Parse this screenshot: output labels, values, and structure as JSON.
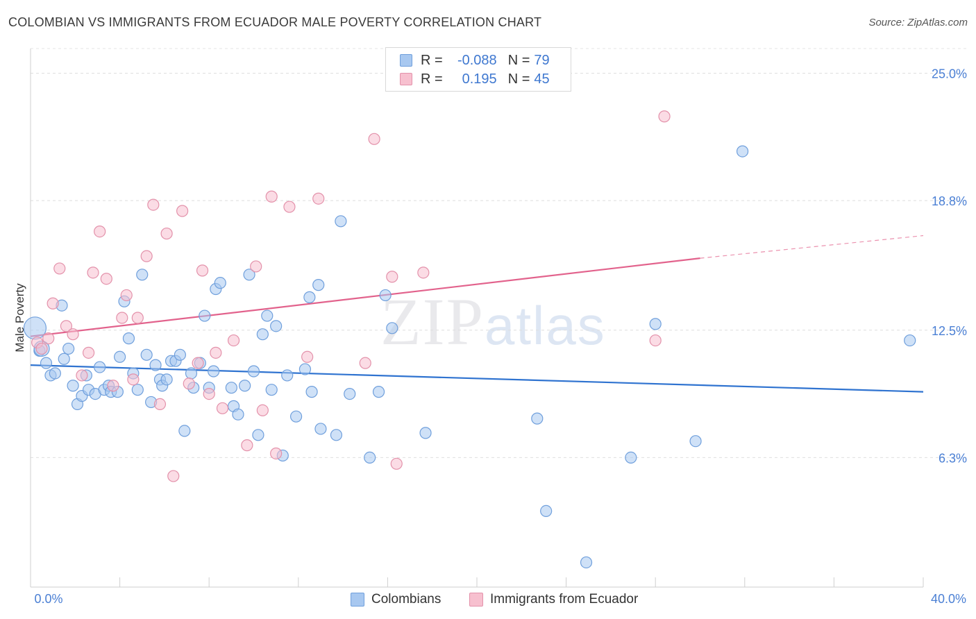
{
  "header": {
    "title": "COLOMBIAN VS IMMIGRANTS FROM ECUADOR MALE POVERTY CORRELATION CHART",
    "source": "Source: ZipAtlas.com"
  },
  "watermark": {
    "zip": "ZIP",
    "atlas": "atlas"
  },
  "legend": {
    "rows": [
      {
        "r_label": "R =",
        "r_value": "-0.088",
        "n_label": "N =",
        "n_value": "79",
        "color": "#a8c8f0",
        "border": "#6f9fdc"
      },
      {
        "r_label": "R =",
        "r_value": "0.195",
        "n_label": "N =",
        "n_value": "45",
        "color": "#f7c0cf",
        "border": "#e391aa"
      }
    ]
  },
  "bottom_legend": [
    {
      "label": "Colombians",
      "color": "#a8c8f0",
      "border": "#6f9fdc"
    },
    {
      "label": "Immigrants from Ecuador",
      "color": "#f7c0cf",
      "border": "#e391aa"
    }
  ],
  "chart_data": {
    "type": "scatter",
    "title": "COLOMBIAN VS IMMIGRANTS FROM ECUADOR MALE POVERTY CORRELATION CHART",
    "xlabel": "",
    "ylabel": "Male Poverty",
    "xlim": [
      0,
      40
    ],
    "ylim": [
      0,
      26.2
    ],
    "x_tick_labels": [
      "0.0%",
      "40.0%"
    ],
    "y_ticks": [
      6.3,
      12.5,
      18.8,
      25.0
    ],
    "y_tick_labels": [
      "6.3%",
      "12.5%",
      "18.8%",
      "25.0%"
    ],
    "grid": "horizontal dashed",
    "legend_position": "top-center",
    "series": [
      {
        "name": "Colombians",
        "color": "#6f9fdc",
        "fill": "#a8c8f0",
        "trend": {
          "x": [
            0,
            40
          ],
          "y": [
            10.8,
            9.5
          ],
          "color": "#2f73d0"
        },
        "points": [
          [
            0.2,
            12.6
          ],
          [
            0.4,
            11.5
          ],
          [
            0.7,
            10.9
          ],
          [
            0.9,
            10.3
          ],
          [
            1.1,
            10.4
          ],
          [
            1.4,
            13.7
          ],
          [
            1.5,
            11.1
          ],
          [
            1.7,
            11.6
          ],
          [
            1.9,
            9.8
          ],
          [
            2.1,
            8.9
          ],
          [
            2.3,
            9.3
          ],
          [
            2.5,
            10.3
          ],
          [
            2.6,
            9.6
          ],
          [
            2.9,
            9.4
          ],
          [
            3.1,
            10.7
          ],
          [
            3.3,
            9.6
          ],
          [
            3.5,
            9.8
          ],
          [
            3.6,
            9.5
          ],
          [
            3.9,
            9.5
          ],
          [
            4.0,
            11.2
          ],
          [
            4.2,
            13.9
          ],
          [
            4.4,
            12.1
          ],
          [
            4.6,
            10.4
          ],
          [
            4.8,
            9.6
          ],
          [
            5.0,
            15.2
          ],
          [
            5.2,
            11.3
          ],
          [
            5.4,
            9.0
          ],
          [
            5.6,
            10.8
          ],
          [
            5.8,
            10.1
          ],
          [
            5.9,
            9.8
          ],
          [
            6.1,
            10.1
          ],
          [
            6.3,
            11.0
          ],
          [
            6.5,
            11.0
          ],
          [
            6.7,
            11.3
          ],
          [
            6.9,
            7.6
          ],
          [
            7.2,
            10.4
          ],
          [
            7.3,
            9.7
          ],
          [
            7.6,
            10.9
          ],
          [
            7.8,
            13.2
          ],
          [
            8.0,
            9.7
          ],
          [
            8.2,
            10.5
          ],
          [
            8.3,
            14.5
          ],
          [
            8.5,
            14.8
          ],
          [
            9.0,
            9.7
          ],
          [
            9.1,
            8.8
          ],
          [
            9.3,
            8.4
          ],
          [
            9.6,
            9.8
          ],
          [
            9.8,
            15.2
          ],
          [
            10.0,
            10.5
          ],
          [
            10.2,
            7.4
          ],
          [
            10.4,
            12.3
          ],
          [
            10.6,
            13.2
          ],
          [
            10.8,
            9.6
          ],
          [
            11.0,
            12.7
          ],
          [
            11.3,
            6.4
          ],
          [
            11.5,
            10.3
          ],
          [
            11.9,
            8.3
          ],
          [
            12.3,
            10.6
          ],
          [
            12.5,
            14.1
          ],
          [
            12.6,
            9.5
          ],
          [
            12.9,
            14.7
          ],
          [
            13.0,
            7.7
          ],
          [
            13.7,
            7.4
          ],
          [
            13.9,
            17.8
          ],
          [
            14.3,
            9.4
          ],
          [
            15.2,
            6.3
          ],
          [
            15.6,
            9.5
          ],
          [
            15.9,
            14.2
          ],
          [
            16.2,
            12.6
          ],
          [
            17.7,
            7.5
          ],
          [
            22.7,
            8.2
          ],
          [
            23.1,
            3.7
          ],
          [
            24.9,
            1.2
          ],
          [
            26.9,
            6.3
          ],
          [
            28.0,
            12.8
          ],
          [
            29.8,
            7.1
          ],
          [
            31.9,
            21.2
          ],
          [
            39.4,
            12.0
          ],
          [
            0.5,
            11.6
          ]
        ]
      },
      {
        "name": "Immigrants from Ecuador",
        "color": "#e391aa",
        "fill": "#f7c0cf",
        "trend": {
          "x": [
            0,
            30
          ],
          "y": [
            12.2,
            16.0
          ],
          "x_dash_end": 40,
          "y_dash_end": 17.1,
          "color": "#e2628c"
        },
        "points": [
          [
            0.3,
            11.9
          ],
          [
            0.5,
            11.6
          ],
          [
            0.8,
            12.1
          ],
          [
            1.0,
            13.8
          ],
          [
            1.3,
            15.5
          ],
          [
            1.6,
            12.7
          ],
          [
            1.9,
            12.3
          ],
          [
            2.3,
            10.3
          ],
          [
            2.6,
            11.4
          ],
          [
            2.8,
            15.3
          ],
          [
            3.1,
            17.3
          ],
          [
            3.4,
            15.0
          ],
          [
            3.7,
            9.8
          ],
          [
            4.1,
            13.1
          ],
          [
            4.3,
            14.2
          ],
          [
            4.6,
            10.1
          ],
          [
            4.8,
            13.1
          ],
          [
            5.2,
            16.1
          ],
          [
            5.5,
            18.6
          ],
          [
            5.8,
            8.9
          ],
          [
            6.1,
            17.2
          ],
          [
            6.4,
            5.4
          ],
          [
            6.8,
            18.3
          ],
          [
            7.1,
            9.9
          ],
          [
            7.5,
            10.9
          ],
          [
            7.7,
            15.4
          ],
          [
            8.0,
            9.4
          ],
          [
            8.3,
            11.4
          ],
          [
            8.6,
            8.7
          ],
          [
            9.1,
            12.0
          ],
          [
            9.7,
            6.9
          ],
          [
            10.1,
            15.6
          ],
          [
            10.4,
            8.6
          ],
          [
            10.8,
            19.0
          ],
          [
            11.0,
            6.5
          ],
          [
            11.6,
            18.5
          ],
          [
            12.4,
            11.2
          ],
          [
            12.9,
            18.9
          ],
          [
            15.0,
            10.9
          ],
          [
            15.4,
            21.8
          ],
          [
            16.2,
            15.1
          ],
          [
            16.4,
            6.0
          ],
          [
            17.6,
            15.3
          ],
          [
            28.0,
            12.0
          ],
          [
            28.4,
            22.9
          ]
        ]
      }
    ]
  }
}
